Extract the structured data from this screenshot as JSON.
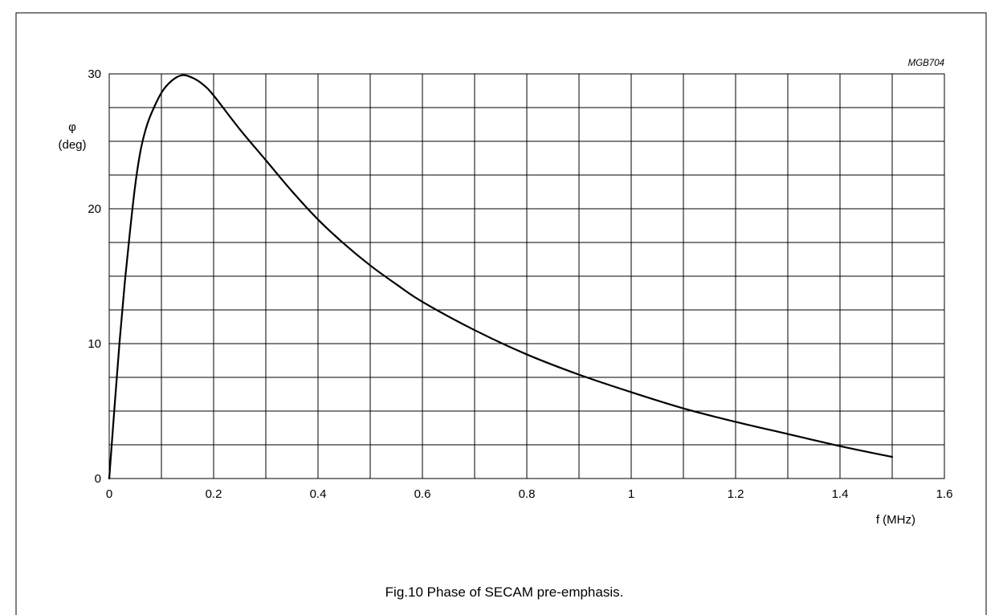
{
  "figure": {
    "code": "MGB704",
    "caption": "Fig.10  Phase of SECAM pre-emphasis."
  },
  "chart_data": {
    "type": "line",
    "title": "",
    "xlabel": "f (MHz)",
    "ylabel_symbol": "φ",
    "ylabel_unit": "(deg)",
    "xlim": [
      0,
      1.6
    ],
    "ylim": [
      0,
      30
    ],
    "x_ticks": [
      0,
      0.2,
      0.4,
      0.6,
      0.8,
      1,
      1.2,
      1.4,
      1.6
    ],
    "x_tick_labels": [
      "0",
      "0.2",
      "0.4",
      "0.6",
      "0.8",
      "1",
      "1.2",
      "1.4",
      "1.6"
    ],
    "y_ticks": [
      0,
      10,
      20,
      30
    ],
    "y_tick_labels": [
      "0",
      "10",
      "20",
      "30"
    ],
    "x_grid_step": 0.1,
    "y_grid_step": 2.5,
    "grid": true,
    "series": [
      {
        "x": [
          0,
          0.01,
          0.02,
          0.03,
          0.04,
          0.05,
          0.06,
          0.07,
          0.08,
          0.1,
          0.12,
          0.14,
          0.16,
          0.18,
          0.2,
          0.25,
          0.3,
          0.35,
          0.4,
          0.45,
          0.5,
          0.55,
          0.6,
          0.7,
          0.8,
          0.9,
          1.0,
          1.1,
          1.2,
          1.3,
          1.4,
          1.5
        ],
        "y": [
          0,
          5.2,
          10.2,
          14.6,
          18.4,
          21.8,
          24.3,
          25.9,
          27.0,
          28.6,
          29.5,
          29.9,
          29.7,
          29.2,
          28.4,
          25.9,
          23.6,
          21.3,
          19.2,
          17.4,
          15.8,
          14.4,
          13.1,
          11.0,
          9.2,
          7.7,
          6.4,
          5.2,
          4.2,
          3.3,
          2.4,
          1.6
        ]
      }
    ]
  }
}
